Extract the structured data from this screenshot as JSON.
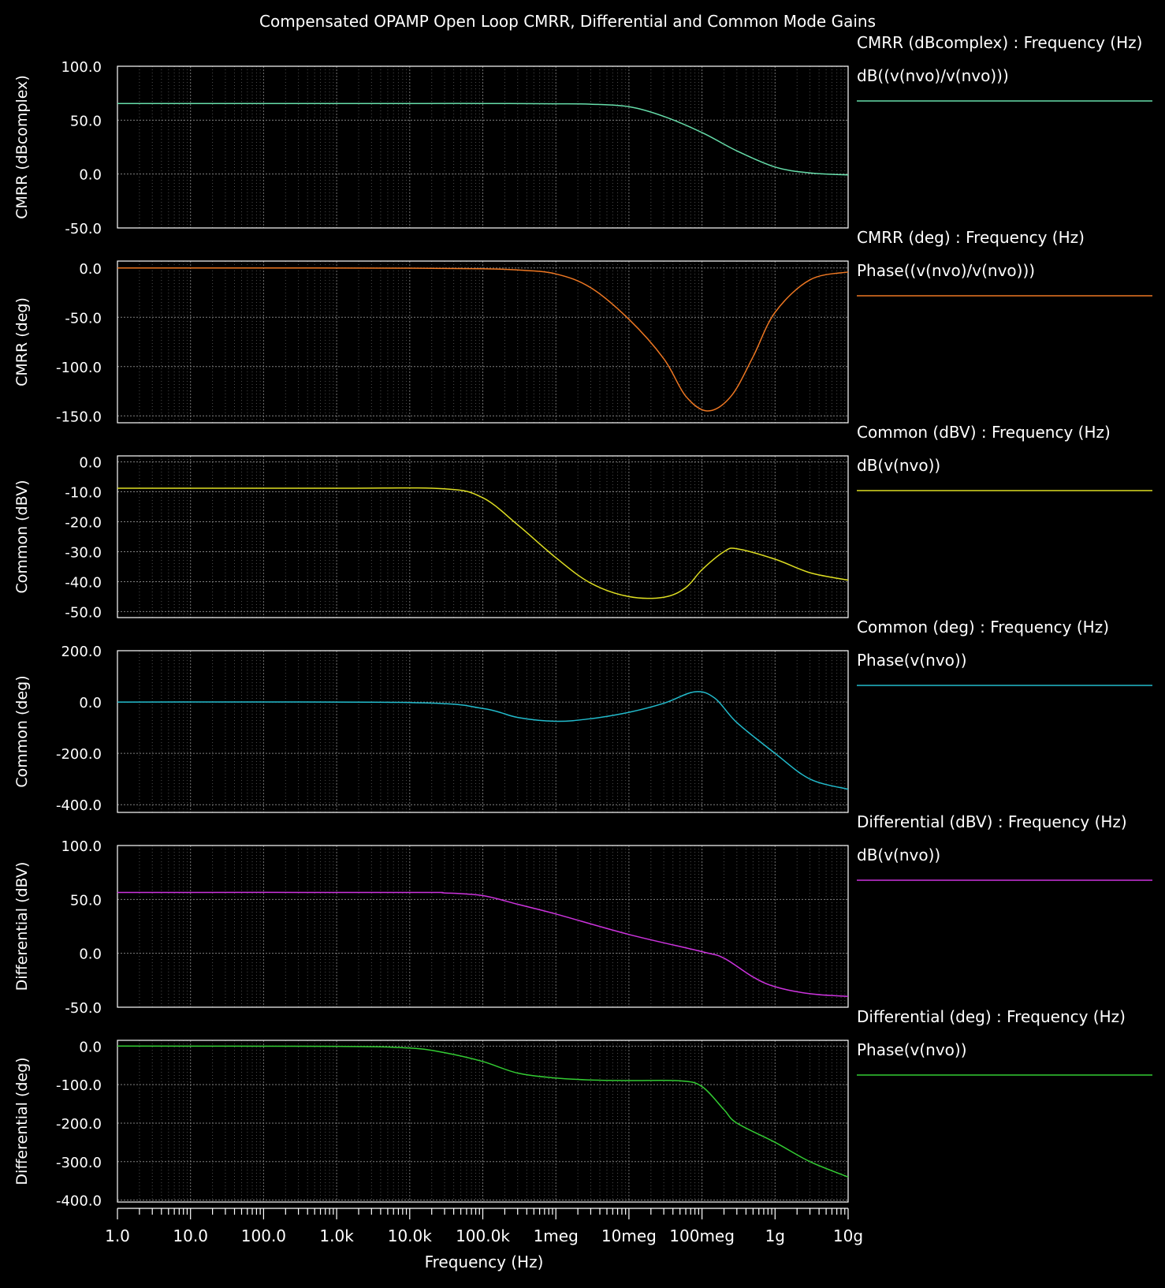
{
  "title": "Compensated OPAMP Open Loop CMRR, Differential and Common Mode Gains",
  "xlabel": "Frequency (Hz)",
  "x_ticks": [
    "1.0",
    "10.0",
    "100.0",
    "1.0k",
    "10.0k",
    "100.0k",
    "1meg",
    "10meg",
    "100meg",
    "1g",
    "10g"
  ],
  "colors": {
    "background": "#000000",
    "frame": "#ffffff",
    "grid": "#808080",
    "text": "#ffffff"
  },
  "chart_data": [
    {
      "type": "line",
      "ylabel": "CMRR (dBcomplex)",
      "legend_title": "CMRR (dBcomplex) : Frequency (Hz)",
      "series_name": "dB((v(nvo)/v(nvo)))",
      "color": "#66ddaa",
      "x_scale": "log",
      "xlim": [
        1,
        10000000000
      ],
      "ylim": [
        -50,
        100
      ],
      "y_ticks": [
        {
          "v": 100,
          "label": "100.0"
        },
        {
          "v": 50,
          "label": "50.0"
        },
        {
          "v": 0,
          "label": "0.0"
        },
        {
          "v": -50,
          "label": "-50.0"
        }
      ],
      "x": [
        1,
        10,
        100,
        1000,
        10000,
        100000,
        1000000,
        3000000,
        10000000,
        30000000,
        100000000,
        300000000,
        1000000000,
        3000000000,
        10000000000
      ],
      "y": [
        65.5,
        65.5,
        65.5,
        65.5,
        65.5,
        65.5,
        65.2,
        64.8,
        62.5,
        53.5,
        38.5,
        21.5,
        6.5,
        1.0,
        -0.8
      ]
    },
    {
      "type": "line",
      "ylabel": "CMRR (deg)",
      "legend_title": "CMRR (deg) : Frequency (Hz)",
      "series_name": "Phase((v(nvo)/v(nvo)))",
      "color": "#ee7722",
      "x_scale": "log",
      "xlim": [
        1,
        10000000000
      ],
      "ylim": [
        -157,
        7
      ],
      "y_ticks": [
        {
          "v": 0,
          "label": "0.0"
        },
        {
          "v": -50,
          "label": "-50.0"
        },
        {
          "v": -100,
          "label": "-100.0"
        },
        {
          "v": -150,
          "label": "-150.0"
        }
      ],
      "x": [
        1,
        100,
        10000,
        100000,
        300000,
        1000000,
        3000000,
        10000000,
        30000000,
        60000000,
        120000000,
        250000000,
        500000000,
        1000000000,
        3000000000,
        10000000000
      ],
      "y": [
        0,
        0,
        -0.2,
        -0.8,
        -2,
        -6,
        -20,
        -52,
        -92,
        -130,
        -145,
        -130,
        -90,
        -45,
        -12,
        -4
      ]
    },
    {
      "type": "line",
      "ylabel": "Common (dBV)",
      "legend_title": "Common (dBV) : Frequency (Hz)",
      "series_name": "dB(v(nvo))",
      "color": "#dddd22",
      "x_scale": "log",
      "xlim": [
        1,
        10000000000
      ],
      "ylim": [
        -52,
        2
      ],
      "y_ticks": [
        {
          "v": 0,
          "label": "0.0"
        },
        {
          "v": -10,
          "label": "-10.0"
        },
        {
          "v": -20,
          "label": "-20.0"
        },
        {
          "v": -30,
          "label": "-30.0"
        },
        {
          "v": -40,
          "label": "-40.0"
        },
        {
          "v": -50,
          "label": "-50.0"
        }
      ],
      "x": [
        1,
        1000,
        30000,
        100000,
        300000,
        1000000,
        3000000,
        10000000,
        30000000,
        60000000,
        100000000,
        200000000,
        300000000,
        1000000000,
        3000000000,
        10000000000
      ],
      "y": [
        -8.8,
        -8.8,
        -9.0,
        -12,
        -21,
        -32,
        -40.5,
        -45,
        -45.2,
        -42,
        -36,
        -30,
        -29,
        -32.5,
        -37,
        -39.5
      ]
    },
    {
      "type": "line",
      "ylabel": "Common (deg)",
      "legend_title": "Common (deg) : Frequency (Hz)",
      "series_name": "Phase(v(nvo))",
      "color": "#22bbcc",
      "x_scale": "log",
      "xlim": [
        1,
        10000000000
      ],
      "ylim": [
        -430,
        200
      ],
      "y_ticks": [
        {
          "v": 200,
          "label": "200.0"
        },
        {
          "v": 0,
          "label": "0.0"
        },
        {
          "v": -200,
          "label": "-200.0"
        },
        {
          "v": -400,
          "label": "-400.0"
        }
      ],
      "x": [
        1,
        10000,
        100000,
        300000,
        1000000,
        3000000,
        10000000,
        30000000,
        80000000,
        150000000,
        300000000,
        1000000000,
        3000000000,
        10000000000
      ],
      "y": [
        0,
        -2,
        -25,
        -60,
        -75,
        -65,
        -40,
        -5,
        40,
        15,
        -80,
        -200,
        -300,
        -340
      ]
    },
    {
      "type": "line",
      "ylabel": "Differential (dBV)",
      "legend_title": "Differential (dBV) : Frequency (Hz)",
      "series_name": "dB(v(nvo))",
      "color": "#cc33dd",
      "x_scale": "log",
      "xlim": [
        1,
        10000000000
      ],
      "ylim": [
        -50,
        100
      ],
      "y_ticks": [
        {
          "v": 100,
          "label": "100.0"
        },
        {
          "v": 50,
          "label": "50.0"
        },
        {
          "v": 0,
          "label": "0.0"
        },
        {
          "v": -50,
          "label": "-50.0"
        }
      ],
      "x": [
        1,
        10000,
        30000,
        100000,
        300000,
        1000000,
        10000000,
        100000000,
        200000000,
        500000000,
        1000000000,
        3000000000,
        10000000000
      ],
      "y": [
        56.5,
        56.5,
        56.0,
        53.5,
        45.5,
        36.5,
        17.5,
        1.5,
        -4.5,
        -22,
        -31,
        -37.5,
        -40
      ]
    },
    {
      "type": "line",
      "ylabel": "Differential (deg)",
      "legend_title": "Differential (deg) : Frequency (Hz)",
      "series_name": "Phase(v(nvo))",
      "color": "#33cc33",
      "x_scale": "log",
      "xlim": [
        1,
        10000000000
      ],
      "ylim": [
        -405,
        15
      ],
      "y_ticks": [
        {
          "v": 0,
          "label": "0.0"
        },
        {
          "v": -100,
          "label": "-100.0"
        },
        {
          "v": -200,
          "label": "-200.0"
        },
        {
          "v": -300,
          "label": "-300.0"
        },
        {
          "v": -400,
          "label": "-400.0"
        }
      ],
      "x": [
        1,
        1000,
        10000,
        30000,
        100000,
        300000,
        1000000,
        3000000,
        10000000,
        50000000,
        100000000,
        200000000,
        300000000,
        1000000000,
        3000000000,
        10000000000
      ],
      "y": [
        0,
        -0.5,
        -5,
        -17,
        -40,
        -70,
        -83,
        -88,
        -89.5,
        -90,
        -105,
        -165,
        -200,
        -250,
        -300,
        -340
      ]
    }
  ]
}
